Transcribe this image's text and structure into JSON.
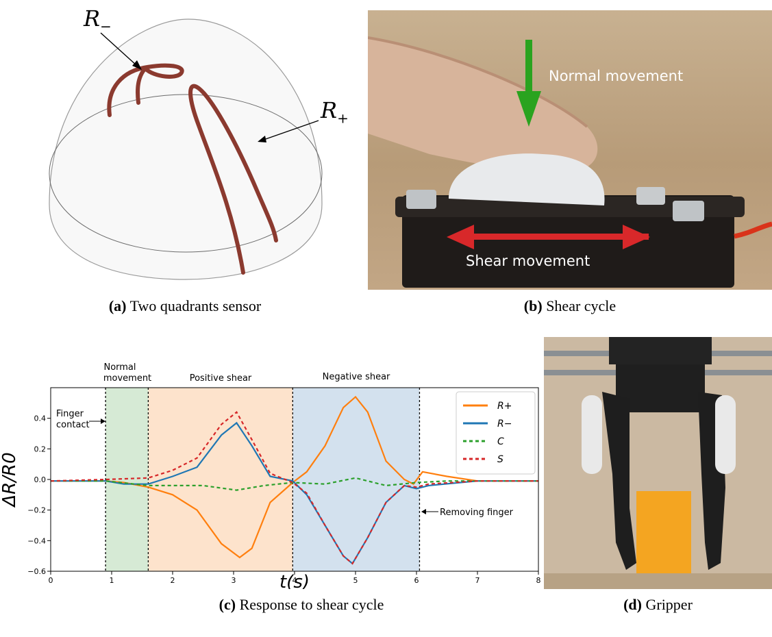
{
  "panel_a": {
    "label_r_minus": "R",
    "label_r_minus_sub": "−",
    "label_r_plus": "R",
    "label_r_plus_sub": "+",
    "caption_tag": "(a)",
    "caption_text": "Two quadrants sensor"
  },
  "panel_b": {
    "normal_label": "Normal movement",
    "shear_label": "Shear movement",
    "caption_tag": "(b)",
    "caption_text": "Shear cycle"
  },
  "panel_c": {
    "caption_tag": "(c)",
    "caption_text": "Response to shear cycle",
    "region_labels": {
      "normal_line1": "Normal",
      "normal_line2": "movement",
      "positive": "Positive shear",
      "negative": "Negative shear"
    },
    "annotations": {
      "finger_line1": "Finger",
      "finger_line2": "contact",
      "removing": "Removing finger"
    },
    "xlabel": "t(s)",
    "ylabel": "ΔR/R0"
  },
  "panel_d": {
    "caption_tag": "(d)",
    "caption_text": "Gripper"
  },
  "chart_data": {
    "type": "line",
    "xlim": [
      0,
      8
    ],
    "ylim": [
      -0.6,
      0.6
    ],
    "xticks": [
      "0",
      "1",
      "2",
      "3",
      "4",
      "5",
      "6",
      "7",
      "8"
    ],
    "yticks": [
      "0.4",
      "0.2",
      "0.0",
      "−0.2",
      "−0.4",
      "−0.6"
    ],
    "ytick_values": [
      0.4,
      0.2,
      0.0,
      -0.2,
      -0.4,
      -0.6
    ],
    "regions": [
      {
        "name": "Normal movement",
        "x0": 0.9,
        "x1": 1.6,
        "color": "#d6ead5"
      },
      {
        "name": "Positive shear",
        "x0": 1.6,
        "x1": 3.97,
        "color": "#fde3cc"
      },
      {
        "name": "Negative shear",
        "x0": 3.97,
        "x1": 6.05,
        "color": "#d3e1ee"
      }
    ],
    "vlines": [
      0.9,
      1.6,
      3.97,
      6.05
    ],
    "grid": false,
    "legend_position": "top-right",
    "series": [
      {
        "name": "R+",
        "color": "#ff7f0e",
        "dash": "solid",
        "x": [
          0,
          0.9,
          1.2,
          1.6,
          2.0,
          2.4,
          2.8,
          3.1,
          3.3,
          3.6,
          3.97,
          4.2,
          4.5,
          4.8,
          5.0,
          5.2,
          5.5,
          5.8,
          5.95,
          6.1,
          6.5,
          7.0,
          8.0
        ],
        "y": [
          -0.01,
          -0.01,
          -0.02,
          -0.05,
          -0.1,
          -0.2,
          -0.42,
          -0.51,
          -0.45,
          -0.15,
          -0.02,
          0.05,
          0.22,
          0.47,
          0.54,
          0.44,
          0.12,
          0.0,
          -0.03,
          0.05,
          0.02,
          -0.01,
          -0.01
        ]
      },
      {
        "name": "R−",
        "color": "#1f77b4",
        "dash": "solid",
        "x": [
          0,
          0.9,
          1.2,
          1.6,
          2.0,
          2.4,
          2.8,
          3.05,
          3.3,
          3.6,
          3.97,
          4.2,
          4.5,
          4.8,
          4.95,
          5.2,
          5.5,
          5.8,
          6.0,
          6.2,
          7.0,
          8.0
        ],
        "y": [
          -0.01,
          -0.01,
          -0.03,
          -0.03,
          0.02,
          0.08,
          0.29,
          0.37,
          0.22,
          0.02,
          -0.01,
          -0.1,
          -0.3,
          -0.5,
          -0.55,
          -0.38,
          -0.15,
          -0.04,
          -0.06,
          -0.04,
          -0.01,
          -0.01
        ]
      },
      {
        "name": "C",
        "color": "#2ca02c",
        "dash": "dashed",
        "x": [
          0,
          0.9,
          1.6,
          2.5,
          3.05,
          3.5,
          3.97,
          4.5,
          5.0,
          5.5,
          6.0,
          6.5,
          8.0
        ],
        "y": [
          -0.01,
          -0.01,
          -0.04,
          -0.04,
          -0.07,
          -0.04,
          -0.02,
          -0.03,
          0.01,
          -0.04,
          -0.02,
          -0.01,
          -0.01
        ]
      },
      {
        "name": "S",
        "color": "#d62728",
        "dash": "dashed",
        "x": [
          0,
          0.9,
          1.6,
          2.0,
          2.4,
          2.8,
          3.05,
          3.3,
          3.6,
          3.97,
          4.2,
          4.5,
          4.8,
          4.95,
          5.2,
          5.5,
          5.8,
          6.0,
          6.2,
          7.0,
          8.0
        ],
        "y": [
          -0.01,
          0.0,
          0.01,
          0.06,
          0.14,
          0.36,
          0.44,
          0.26,
          0.04,
          -0.02,
          -0.09,
          -0.3,
          -0.5,
          -0.55,
          -0.38,
          -0.15,
          -0.04,
          -0.05,
          -0.03,
          -0.01,
          -0.01
        ]
      }
    ]
  }
}
